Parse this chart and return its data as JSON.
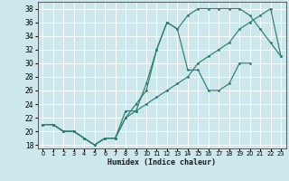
{
  "xlabel": "Humidex (Indice chaleur)",
  "bg_color": "#cce8ec",
  "grid_color": "#ffffff",
  "line_color": "#2e7d6e",
  "xlim": [
    -0.5,
    23.5
  ],
  "ylim": [
    17.5,
    39.0
  ],
  "xticks": [
    0,
    1,
    2,
    3,
    4,
    5,
    6,
    7,
    8,
    9,
    10,
    11,
    12,
    13,
    14,
    15,
    16,
    17,
    18,
    19,
    20,
    21,
    22,
    23
  ],
  "yticks": [
    18,
    20,
    22,
    24,
    26,
    28,
    30,
    32,
    34,
    36,
    38
  ],
  "line1_x": [
    0,
    1,
    2,
    3,
    4,
    5,
    6,
    7,
    8,
    9,
    10,
    11,
    12,
    13,
    14,
    15,
    16,
    17,
    18,
    19,
    20
  ],
  "line1_y": [
    21,
    21,
    20,
    20,
    19,
    18,
    19,
    19,
    23,
    23,
    27,
    32,
    36,
    35,
    29,
    29,
    26,
    26,
    27,
    30,
    30
  ],
  "line2_x": [
    0,
    1,
    2,
    3,
    4,
    5,
    6,
    7,
    8,
    9,
    10,
    11,
    12,
    13,
    14,
    15,
    16,
    17,
    18,
    19,
    20,
    21,
    22,
    23
  ],
  "line2_y": [
    21,
    21,
    20,
    20,
    19,
    18,
    19,
    19,
    22,
    24,
    26,
    32,
    36,
    35,
    37,
    38,
    38,
    38,
    38,
    38,
    37,
    35,
    33,
    31
  ],
  "line3_x": [
    0,
    1,
    2,
    3,
    4,
    5,
    6,
    7,
    8,
    9,
    10,
    11,
    12,
    13,
    14,
    15,
    16,
    17,
    18,
    19,
    20,
    21,
    22,
    23
  ],
  "line3_y": [
    21,
    21,
    20,
    20,
    19,
    18,
    19,
    19,
    22,
    23,
    24,
    25,
    26,
    27,
    28,
    30,
    31,
    32,
    33,
    35,
    36,
    37,
    38,
    31
  ]
}
